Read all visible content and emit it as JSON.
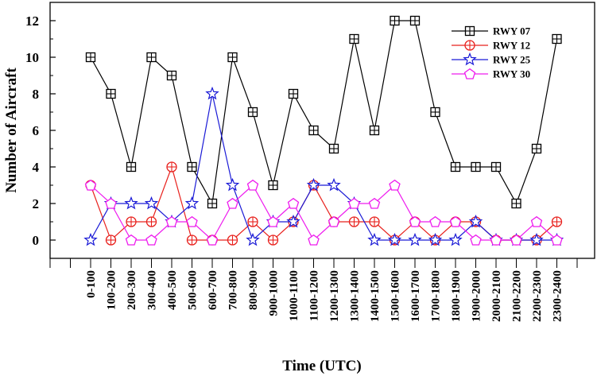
{
  "chart_data": {
    "type": "line",
    "title": "",
    "xlabel": "Time (UTC)",
    "ylabel": "Number of Aircraft",
    "ylim": [
      -1,
      13
    ],
    "yticks": [
      0,
      2,
      4,
      6,
      8,
      10,
      12
    ],
    "grid": false,
    "legend_position": "top-right",
    "categories": [
      "0-100",
      "100-200",
      "200-300",
      "300-400",
      "400-500",
      "500-600",
      "600-700",
      "700-800",
      "800-900",
      "900-1000",
      "1000-1100",
      "1100-1200",
      "1200-1300",
      "1300-1400",
      "1400-1500",
      "1500-1600",
      "1600-1700",
      "1700-1800",
      "1800-1900",
      "1900-2000",
      "2000-2100",
      "2100-2200",
      "2200-2300",
      "2300-2400"
    ],
    "series": [
      {
        "name": "RWY 07",
        "color": "#000000",
        "marker": "square-plus",
        "values": [
          10,
          8,
          4,
          10,
          9,
          4,
          2,
          10,
          7,
          3,
          8,
          6,
          5,
          11,
          6,
          12,
          12,
          7,
          4,
          4,
          4,
          2,
          5,
          11
        ]
      },
      {
        "name": "RWY 12",
        "color": "#e8201c",
        "marker": "circle-plus",
        "values": [
          3,
          0,
          1,
          1,
          4,
          0,
          0,
          0,
          1,
          0,
          1,
          3,
          1,
          1,
          1,
          0,
          1,
          0,
          1,
          1,
          0,
          0,
          0,
          1
        ]
      },
      {
        "name": "RWY 25",
        "color": "#1a1ad6",
        "marker": "star",
        "values": [
          0,
          2,
          2,
          2,
          1,
          2,
          8,
          3,
          0,
          1,
          1,
          3,
          3,
          2,
          0,
          0,
          0,
          0,
          0,
          1,
          0,
          0,
          0,
          0
        ]
      },
      {
        "name": "RWY 30",
        "color": "#ee1cee",
        "marker": "pentagon",
        "values": [
          3,
          2,
          0,
          0,
          1,
          1,
          0,
          2,
          3,
          1,
          2,
          0,
          1,
          2,
          2,
          3,
          1,
          1,
          1,
          0,
          0,
          0,
          1,
          0
        ]
      }
    ]
  }
}
